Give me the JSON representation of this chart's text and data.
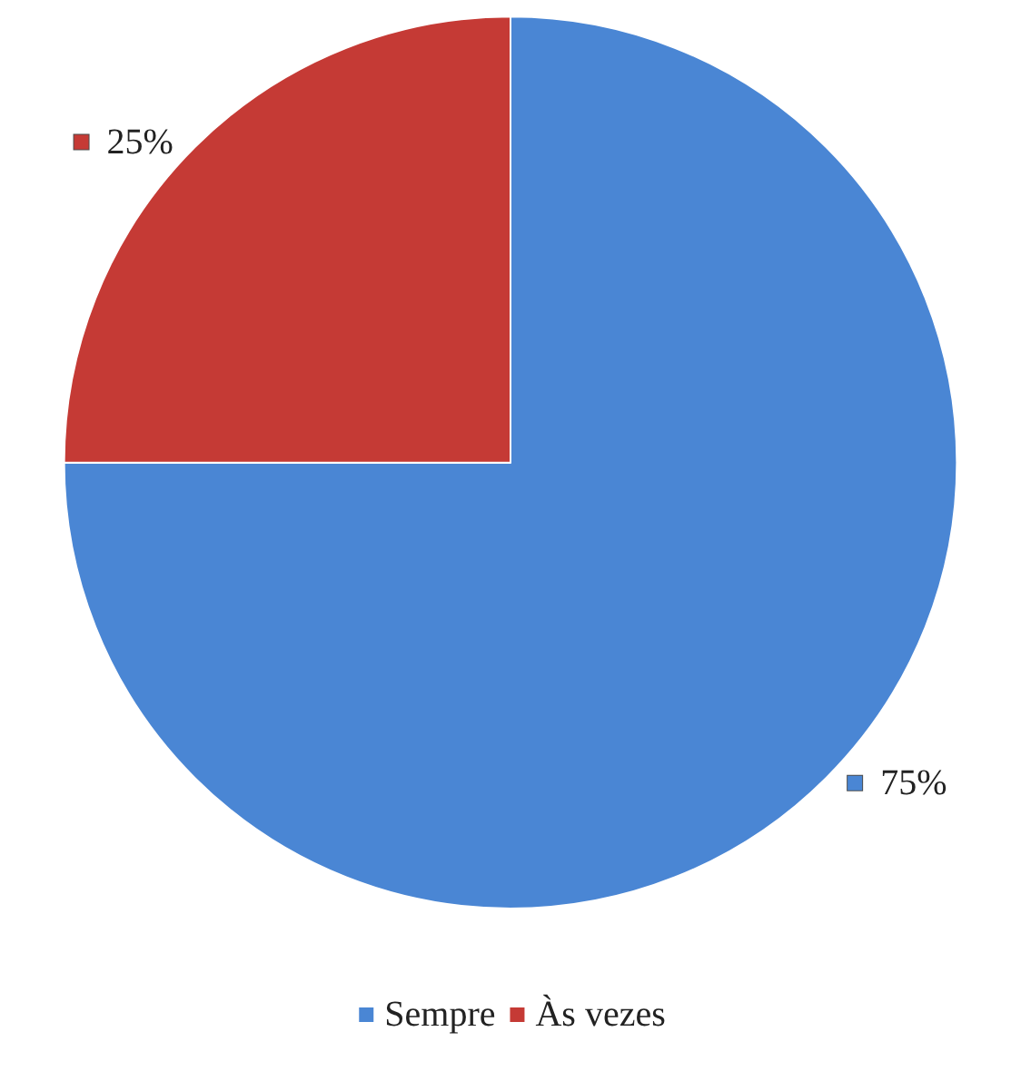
{
  "chart_data": {
    "type": "pie",
    "categories": [
      "Sempre",
      "Às vezes"
    ],
    "values": [
      75,
      25
    ],
    "colors": [
      "#4a86d4",
      "#c53a35"
    ],
    "value_labels": [
      "75%",
      "25%"
    ],
    "legend": "bottom"
  }
}
